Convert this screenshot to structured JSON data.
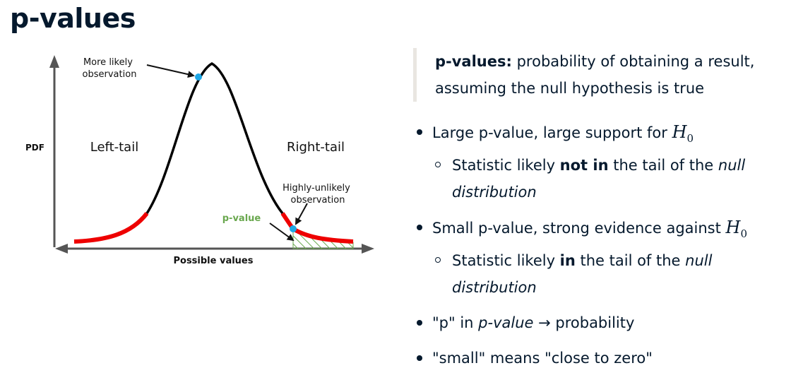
{
  "title": "p-values",
  "diagram": {
    "y_axis_label": "PDF",
    "x_axis_label": "Possible values",
    "left_region_label": "Left-tail",
    "right_region_label": "Right-tail",
    "likely_label": [
      "More likely",
      "observation"
    ],
    "unlikely_label": [
      "Highly-unlikely",
      "observation"
    ],
    "pvalue_label": "p-value",
    "colors": {
      "curve": "#000000",
      "tail": "#ee0000",
      "point": "#1ea7e6",
      "pvalue": "#6aa84f",
      "axis": "#555555"
    }
  },
  "definition": {
    "term": "p-values:",
    "text": "probability of obtaining a result, assuming the null hypothesis is true"
  },
  "bullets": [
    {
      "pre": "Large p-value, large support for ",
      "math": "H",
      "math_sub": "0",
      "sub": {
        "pre": "Statistic likely ",
        "bold": "not in",
        "mid": " the tail of the ",
        "italic": "null distribution"
      }
    },
    {
      "pre": "Small p-value, strong evidence against ",
      "math": "H",
      "math_sub": "0",
      "sub": {
        "pre": "Statistic likely ",
        "bold": "in",
        "mid": " the tail of the ",
        "italic": "null distribution"
      }
    }
  ],
  "bullet3": {
    "pre": "\"p\" in ",
    "italic": "p-value",
    "post": " → probability"
  },
  "bullet4": {
    "text": "\"small\" means \"close to zero\""
  }
}
